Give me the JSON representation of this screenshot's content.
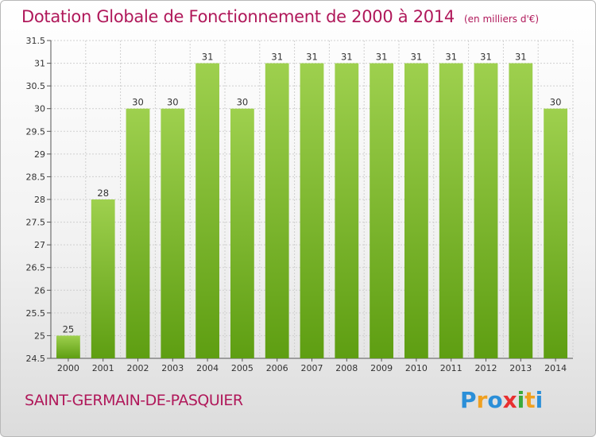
{
  "header": {
    "title": "Dotation Globale de Fonctionnement de 2000 à 2014",
    "unit": "(en milliers d'€)"
  },
  "footer": {
    "town": "SAINT-GERMAIN-DE-PASQUIER",
    "logo": "Proxiti"
  },
  "colors": {
    "bar_top": "#9ed04e",
    "bar_bottom": "#5e9e12",
    "title": "#b0185a",
    "grid": "#cfcfcf"
  },
  "chart_data": {
    "type": "bar",
    "title": "Dotation Globale de Fonctionnement de 2000 à 2014",
    "subtitle": "(en milliers d'€)",
    "xlabel": "",
    "ylabel": "",
    "categories": [
      "2000",
      "2001",
      "2002",
      "2003",
      "2004",
      "2005",
      "2006",
      "2007",
      "2008",
      "2009",
      "2010",
      "2011",
      "2012",
      "2013",
      "2014"
    ],
    "values": [
      25,
      28,
      30,
      30,
      31,
      30,
      31,
      31,
      31,
      31,
      31,
      31,
      31,
      31,
      30
    ],
    "ylim": [
      24.5,
      31.5
    ],
    "yticks": [
      24.5,
      25,
      25.5,
      26,
      26.5,
      27,
      27.5,
      28,
      28.5,
      29,
      29.5,
      30,
      30.5,
      31,
      31.5
    ],
    "grid": true,
    "legend": "none"
  }
}
